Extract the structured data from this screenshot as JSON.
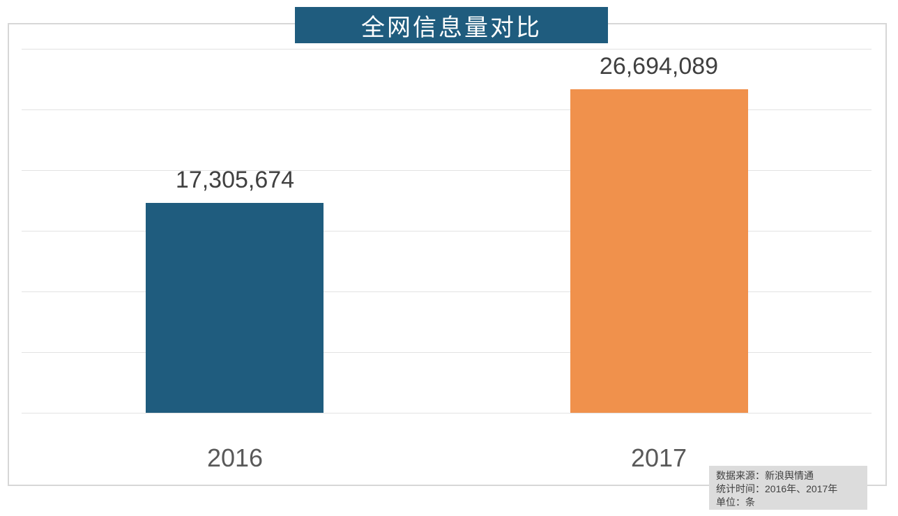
{
  "title": {
    "text": "全网信息量对比"
  },
  "colors": {
    "banner_bg": "#1f5c7e",
    "banner_text": "#ffffff",
    "bar_2016": "#1f5c7e",
    "bar_2017": "#f0914c",
    "gridline": "#e2e2e2",
    "frame_border": "#d7d7d7",
    "value_label_text": "#404040",
    "axis_label_text": "#595959",
    "note_bg": "#dcdcdc",
    "note_text": "#3f3f3f",
    "background": "#ffffff"
  },
  "chart_data": {
    "type": "bar",
    "title": "全网信息量对比",
    "categories": [
      "2016",
      "2017"
    ],
    "values": [
      17305674,
      26694089
    ],
    "value_labels": [
      "17,305,674",
      "26,694,089"
    ],
    "series_colors": [
      "#1f5c7e",
      "#f0914c"
    ],
    "xlabel": "",
    "ylabel": "",
    "ylim": [
      0,
      30000000
    ],
    "gridline_step": 5000000,
    "grid": "horizontal",
    "legend": "none",
    "unit": "条"
  },
  "footnote": {
    "lines": [
      "数据来源：新浪舆情通",
      "统计时间：2016年、2017年",
      "单位：条"
    ]
  }
}
